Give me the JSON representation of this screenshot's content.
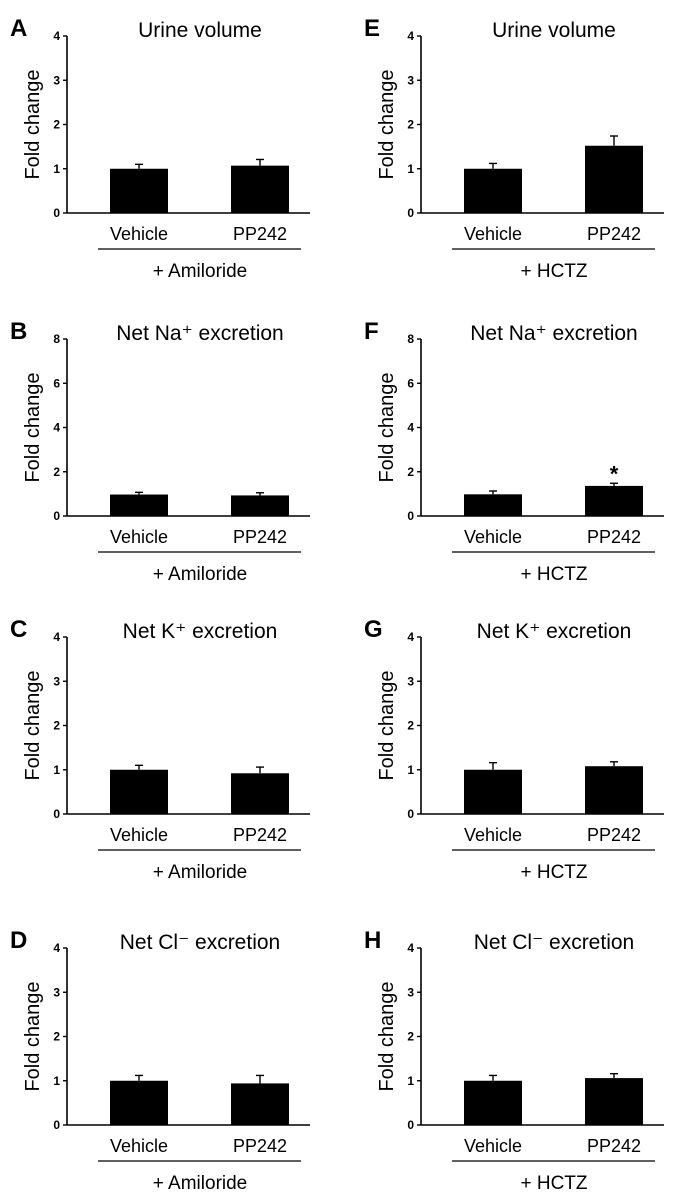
{
  "chart_data": [
    {
      "panel": "A",
      "type": "bar",
      "title": "Urine volume",
      "ylabel": "Fold change",
      "ylim": [
        0,
        4
      ],
      "yticks": [
        "0",
        "1",
        "2",
        "3",
        "4"
      ],
      "categories": [
        "Vehicle",
        "PP242"
      ],
      "values": [
        1.0,
        1.07
      ],
      "errors": [
        0.1,
        0.14
      ],
      "treatment": "+ Amiloride",
      "annotations": []
    },
    {
      "panel": "B",
      "type": "bar",
      "title": "Net Na⁺ excretion",
      "ylabel": "Fold change",
      "ylim": [
        0,
        8
      ],
      "yticks": [
        "0",
        "2",
        "4",
        "6",
        "8"
      ],
      "categories": [
        "Vehicle",
        "PP242"
      ],
      "values": [
        0.97,
        0.93
      ],
      "errors": [
        0.1,
        0.12
      ],
      "treatment": "+ Amiloride",
      "annotations": []
    },
    {
      "panel": "C",
      "type": "bar",
      "title": "Net K⁺ excretion",
      "ylabel": "Fold change",
      "ylim": [
        0,
        4
      ],
      "yticks": [
        "0",
        "1",
        "2",
        "3",
        "4"
      ],
      "categories": [
        "Vehicle",
        "PP242"
      ],
      "values": [
        1.0,
        0.92
      ],
      "errors": [
        0.1,
        0.14
      ],
      "treatment": "+ Amiloride",
      "annotations": []
    },
    {
      "panel": "D",
      "type": "bar",
      "title": "Net Cl⁻ excretion",
      "ylabel": "Fold change",
      "ylim": [
        0,
        4
      ],
      "yticks": [
        "0",
        "1",
        "2",
        "3",
        "4"
      ],
      "categories": [
        "Vehicle",
        "PP242"
      ],
      "values": [
        1.0,
        0.94
      ],
      "errors": [
        0.12,
        0.18
      ],
      "treatment": "+ Amiloride",
      "annotations": []
    },
    {
      "panel": "E",
      "type": "bar",
      "title": "Urine volume",
      "ylabel": "Fold change",
      "ylim": [
        0,
        4
      ],
      "yticks": [
        "0",
        "1",
        "2",
        "3",
        "4"
      ],
      "categories": [
        "Vehicle",
        "PP242"
      ],
      "values": [
        1.0,
        1.52
      ],
      "errors": [
        0.12,
        0.22
      ],
      "treatment": "+ HCTZ",
      "annotations": []
    },
    {
      "panel": "F",
      "type": "bar",
      "title": "Net Na⁺ excretion",
      "ylabel": "Fold change",
      "ylim": [
        0,
        8
      ],
      "yticks": [
        "0",
        "2",
        "4",
        "6",
        "8"
      ],
      "categories": [
        "Vehicle",
        "PP242"
      ],
      "values": [
        0.98,
        1.36
      ],
      "errors": [
        0.15,
        0.12
      ],
      "treatment": "+ HCTZ",
      "annotations": [
        "*"
      ]
    },
    {
      "panel": "G",
      "type": "bar",
      "title": "Net K⁺ excretion",
      "ylabel": "Fold change",
      "ylim": [
        0,
        4
      ],
      "yticks": [
        "0",
        "1",
        "2",
        "3",
        "4"
      ],
      "categories": [
        "Vehicle",
        "PP242"
      ],
      "values": [
        1.0,
        1.08
      ],
      "errors": [
        0.16,
        0.1
      ],
      "treatment": "+ HCTZ",
      "annotations": []
    },
    {
      "panel": "H",
      "type": "bar",
      "title": "Net Cl⁻ excretion",
      "ylabel": "Fold change",
      "ylim": [
        0,
        4
      ],
      "yticks": [
        "0",
        "1",
        "2",
        "3",
        "4"
      ],
      "categories": [
        "Vehicle",
        "PP242"
      ],
      "values": [
        1.0,
        1.06
      ],
      "errors": [
        0.12,
        0.1
      ],
      "treatment": "+ HCTZ",
      "annotations": []
    }
  ],
  "colors": {
    "bar": "#000000",
    "axis": "#000000",
    "text": "#000000"
  }
}
